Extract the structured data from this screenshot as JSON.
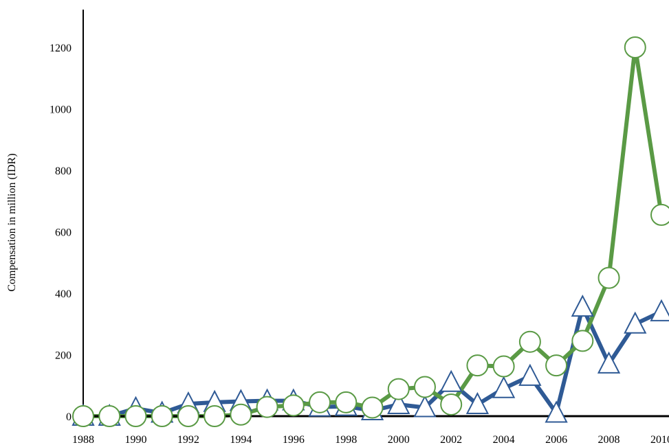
{
  "chart_data": {
    "type": "line",
    "title": "",
    "xlabel": "",
    "ylabel": "Compensation in million (IDR)",
    "x_range": [
      1988,
      2010
    ],
    "ylim": [
      0,
      1300
    ],
    "y_ticks": [
      0,
      200,
      400,
      600,
      800,
      1000,
      1200
    ],
    "x_ticks": [
      1988,
      1990,
      1992,
      1994,
      1996,
      1998,
      2000,
      2002,
      2004,
      2006,
      2008,
      2010
    ],
    "x_tick_labels": [
      "1988",
      "1990",
      "1992",
      "1994",
      "1996",
      "1998",
      "2000",
      "2002",
      "2004",
      "2006",
      "2008",
      "2010"
    ],
    "grid": false,
    "legend": "none",
    "x": [
      1988,
      1989,
      1990,
      1991,
      1992,
      1993,
      1994,
      1995,
      1996,
      1997,
      1998,
      1999,
      2000,
      2001,
      2002,
      2003,
      2004,
      2005,
      2006,
      2007,
      2008,
      2009,
      2010
    ],
    "series": [
      {
        "color": "#2f5a95",
        "marker": "triangle",
        "values": [
          0,
          0,
          25,
          10,
          40,
          45,
          48,
          50,
          50,
          30,
          32,
          18,
          38,
          28,
          110,
          38,
          90,
          130,
          10,
          355,
          170,
          300,
          340
        ]
      },
      {
        "color": "#5a9a45",
        "marker": "circle",
        "values": [
          0,
          0,
          0,
          0,
          0,
          0,
          5,
          30,
          35,
          45,
          45,
          28,
          88,
          95,
          38,
          165,
          162,
          242,
          165,
          245,
          450,
          1200,
          655
        ]
      }
    ]
  }
}
